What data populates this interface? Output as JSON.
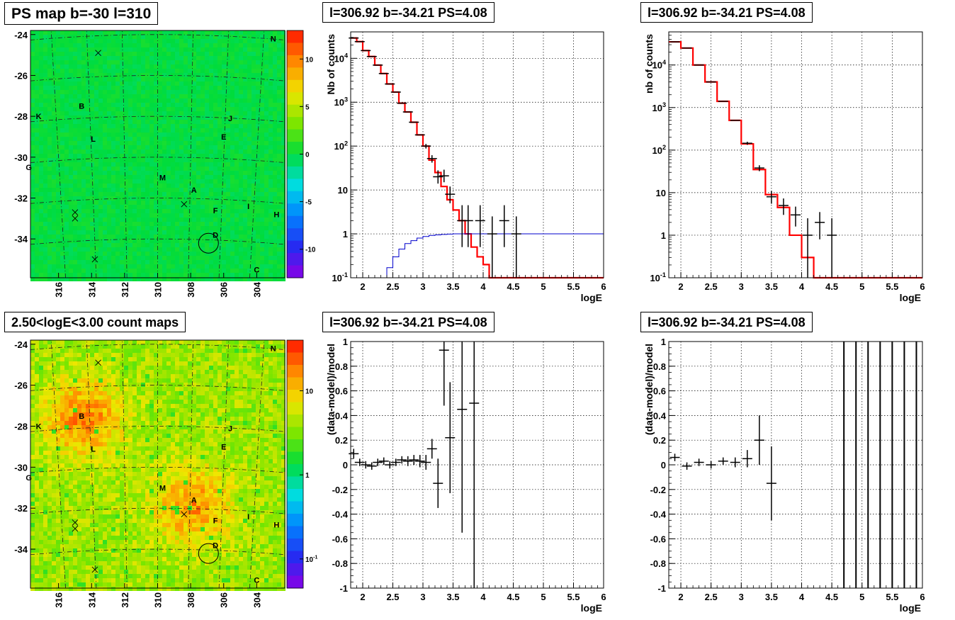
{
  "colors": {
    "data_marker": "#000000",
    "model_line": "#ff0000",
    "coverage_line": "#0000cc",
    "grid": "#000000",
    "ps_map_fill": "#22e022",
    "count_map_fill": "#f6b23a"
  },
  "chart_data": [
    {
      "id": "ps-map",
      "type": "heatmap",
      "title": "PS map b=-30 l=310",
      "x_ticks": [
        "316",
        "314",
        "312",
        "310",
        "308",
        "306",
        "304"
      ],
      "y_ticks": [
        "-24",
        "-26",
        "-28",
        "-30",
        "-32",
        "-34"
      ],
      "xlim": [
        317.7,
        302.3
      ],
      "ylim": [
        -35.9,
        -23.8
      ],
      "colorbar": {
        "ticks": [
          "10",
          "5",
          "0",
          "-5",
          "-10"
        ],
        "tick_values": [
          10,
          5,
          0,
          -5,
          -10
        ],
        "range": [
          -13,
          13
        ],
        "scale": "linear"
      },
      "sources": [
        {
          "label": "N",
          "l": 303.0,
          "b": -24.2
        },
        {
          "label": "B",
          "l": 314.6,
          "b": -27.5
        },
        {
          "label": "K",
          "l": 317.2,
          "b": -28.0
        },
        {
          "label": "J",
          "l": 305.6,
          "b": -28.1
        },
        {
          "label": "L",
          "l": 313.9,
          "b": -29.1
        },
        {
          "label": "E",
          "l": 306.0,
          "b": -29.0
        },
        {
          "label": "G",
          "l": 317.8,
          "b": -30.5
        },
        {
          "label": "M",
          "l": 309.7,
          "b": -31.0
        },
        {
          "label": "A",
          "l": 307.8,
          "b": -31.6
        },
        {
          "label": "F",
          "l": 306.5,
          "b": -32.6
        },
        {
          "label": "I",
          "l": 304.5,
          "b": -32.4
        },
        {
          "label": "H",
          "l": 302.8,
          "b": -32.8
        },
        {
          "label": "D",
          "l": 306.5,
          "b": -33.8
        },
        {
          "label": "C",
          "l": 304.0,
          "b": -35.5
        }
      ],
      "crosses": [
        {
          "l": 313.6,
          "b": -24.9
        },
        {
          "l": 315.0,
          "b": -32.7
        },
        {
          "l": 315.0,
          "b": -33.0
        },
        {
          "l": 308.4,
          "b": -32.3
        },
        {
          "l": 313.8,
          "b": -35.0
        }
      ],
      "circle": {
        "l": 306.92,
        "b": -34.21
      }
    },
    {
      "id": "count-map",
      "type": "heatmap",
      "title": "2.50<logE<3.00 count maps",
      "x_ticks": [
        "316",
        "314",
        "312",
        "310",
        "308",
        "306",
        "304"
      ],
      "y_ticks": [
        "-24",
        "-26",
        "-28",
        "-30",
        "-32",
        "-34"
      ],
      "xlim": [
        317.7,
        302.3
      ],
      "ylim": [
        -35.9,
        -23.8
      ],
      "colorbar": {
        "ticks": [
          "10",
          "1",
          "10^-1"
        ],
        "tick_values": [
          10,
          1,
          0.1
        ],
        "range": [
          0.045,
          40
        ],
        "scale": "log"
      },
      "sources": [
        {
          "label": "N",
          "l": 303.0,
          "b": -24.2
        },
        {
          "label": "B",
          "l": 314.6,
          "b": -27.5
        },
        {
          "label": "K",
          "l": 317.2,
          "b": -28.0
        },
        {
          "label": "J",
          "l": 305.6,
          "b": -28.1
        },
        {
          "label": "L",
          "l": 313.9,
          "b": -29.1
        },
        {
          "label": "E",
          "l": 306.0,
          "b": -29.0
        },
        {
          "label": "G",
          "l": 317.8,
          "b": -30.5
        },
        {
          "label": "M",
          "l": 309.7,
          "b": -31.0
        },
        {
          "label": "A",
          "l": 307.8,
          "b": -31.6
        },
        {
          "label": "F",
          "l": 306.5,
          "b": -32.6
        },
        {
          "label": "I",
          "l": 304.5,
          "b": -32.4
        },
        {
          "label": "H",
          "l": 302.8,
          "b": -32.8
        },
        {
          "label": "D",
          "l": 306.5,
          "b": -33.8
        },
        {
          "label": "C",
          "l": 304.0,
          "b": -35.5
        }
      ],
      "crosses": [
        {
          "l": 313.6,
          "b": -24.9
        },
        {
          "l": 315.0,
          "b": -32.7
        },
        {
          "l": 315.0,
          "b": -33.0
        },
        {
          "l": 308.4,
          "b": -32.3
        },
        {
          "l": 313.8,
          "b": -35.0
        }
      ],
      "circle": {
        "l": 306.92,
        "b": -34.21
      },
      "hotspots": [
        {
          "l": 314.6,
          "b": -27.5,
          "strength": 1.0
        },
        {
          "l": 308.0,
          "b": -31.8,
          "strength": 0.9
        }
      ]
    },
    {
      "id": "spectrum-1",
      "type": "line",
      "title": "l=306.92 b=-34.21 PS=4.08",
      "xlabel": "logE",
      "ylabel": "Nb of counts",
      "yscale": "log",
      "xlim": [
        1.8,
        6.0
      ],
      "ylim": [
        0.1,
        40000
      ],
      "x_ticks": [
        "2",
        "2.5",
        "3",
        "3.5",
        "4",
        "4.5",
        "5",
        "5.5",
        "6"
      ],
      "y_ticks": [
        "10^-1",
        "1",
        "10",
        "10^2",
        "10^3",
        "10^4"
      ],
      "series": [
        {
          "kind": "step",
          "edges": [
            1.8,
            1.9,
            2.0,
            2.1,
            2.2,
            2.3,
            2.4,
            2.5,
            2.6,
            2.7,
            2.8,
            2.9,
            3.0,
            3.1,
            3.2,
            3.3,
            3.4,
            3.5,
            3.6,
            3.7,
            3.8,
            3.9,
            4.0,
            4.1,
            4.2,
            4.3,
            4.4,
            4.5,
            4.6,
            4.7,
            4.8,
            4.9,
            5.0,
            5.1,
            5.2,
            5.3,
            5.4,
            5.5,
            5.6,
            5.7,
            5.8,
            5.9,
            6.0
          ],
          "values": [
            29000,
            24000,
            15000,
            11000,
            7000,
            4500,
            2600,
            1700,
            950,
            600,
            350,
            180,
            100,
            48,
            25,
            12,
            6,
            3.5,
            2,
            1,
            0.5,
            0.3,
            0.2,
            0.1,
            0.1,
            0.1,
            0.1,
            0.1,
            0.1,
            0.1,
            0.1,
            0.1,
            0.1,
            0.1,
            0.1,
            0.1,
            0.1,
            0.1,
            0.1,
            0.1,
            0.1,
            0.1
          ]
        },
        {
          "kind": "step",
          "edges": [
            2.3,
            2.4,
            2.5,
            2.6,
            2.7,
            2.8,
            2.9,
            3.0,
            3.1,
            3.2,
            3.3,
            3.4,
            3.5,
            3.6,
            6.0
          ],
          "values": [
            0.1,
            0.17,
            0.3,
            0.45,
            0.6,
            0.7,
            0.8,
            0.87,
            0.92,
            0.95,
            0.97,
            0.99,
            1.0,
            1.0
          ]
        },
        {
          "kind": "points",
          "x": [
            1.85,
            1.95,
            2.05,
            2.15,
            2.25,
            2.35,
            2.45,
            2.55,
            2.65,
            2.75,
            2.85,
            2.95,
            3.05,
            3.15,
            3.25,
            3.35,
            3.45,
            3.65,
            3.75,
            3.95,
            4.15,
            4.35,
            4.55
          ],
          "y": [
            29000,
            24000,
            15000,
            11000,
            7000,
            4500,
            2600,
            1700,
            950,
            600,
            350,
            180,
            100,
            52,
            20,
            21,
            8,
            2,
            2,
            2,
            1,
            2,
            1
          ],
          "err_up": [
            0,
            0,
            0,
            0,
            0,
            0,
            0,
            0,
            0,
            0,
            0,
            0,
            12,
            10,
            8,
            8,
            4,
            2.5,
            2.5,
            2.5,
            1.5,
            2.5,
            1.5
          ],
          "err_down": [
            0,
            0,
            0,
            0,
            0,
            0,
            0,
            0,
            0,
            0,
            0,
            0,
            12,
            10,
            6,
            6,
            3,
            1.5,
            1.5,
            1.5,
            0.9,
            1.5,
            0.9
          ]
        }
      ]
    },
    {
      "id": "spectrum-2",
      "type": "line",
      "title": "l=306.92 b=-34.21 PS=4.08",
      "xlabel": "logE",
      "ylabel": "nb of counts",
      "yscale": "log",
      "xlim": [
        1.8,
        6.0
      ],
      "ylim": [
        0.1,
        60000
      ],
      "x_ticks": [
        "2",
        "2.5",
        "3",
        "3.5",
        "4",
        "4.5",
        "5",
        "5.5",
        "6"
      ],
      "y_ticks": [
        "10^-1",
        "1",
        "10",
        "10^2",
        "10^3",
        "10^4"
      ],
      "series": [
        {
          "kind": "step",
          "edges": [
            1.8,
            2.0,
            2.2,
            2.4,
            2.6,
            2.8,
            3.0,
            3.2,
            3.4,
            3.6,
            3.8,
            4.0,
            4.2,
            4.4,
            6.0
          ],
          "values": [
            35000,
            25000,
            10000,
            4000,
            1400,
            500,
            140,
            35,
            9,
            4.5,
            1,
            0.3,
            0.1,
            0.1
          ]
        },
        {
          "kind": "points",
          "x": [
            1.9,
            2.1,
            2.3,
            2.5,
            2.7,
            2.9,
            3.1,
            3.3,
            3.5,
            3.7,
            3.9,
            4.1,
            4.3,
            4.5
          ],
          "y": [
            35000,
            25000,
            10000,
            4000,
            1400,
            500,
            145,
            38,
            8,
            5,
            3,
            1,
            2,
            1
          ],
          "err_up": [
            0,
            0,
            0,
            0,
            0,
            0,
            12,
            6,
            3,
            2.3,
            1.7,
            1.5,
            1.5,
            1.5
          ],
          "err_down": [
            0,
            0,
            0,
            0,
            0,
            0,
            12,
            6,
            2.5,
            2,
            1.4,
            0.9,
            1.2,
            0.9
          ]
        }
      ]
    },
    {
      "id": "residual-1",
      "type": "scatter",
      "title": "l=306.92 b=-34.21 PS=4.08",
      "xlabel": "logE",
      "ylabel": "(data-model)/model",
      "xlim": [
        1.8,
        6.0
      ],
      "ylim": [
        -1,
        1
      ],
      "x_ticks": [
        "2",
        "2.5",
        "3",
        "3.5",
        "4",
        "4.5",
        "5",
        "5.5",
        "6"
      ],
      "y_ticks": [
        "-1",
        "-0.8",
        "-0.6",
        "-0.4",
        "-0.2",
        "0",
        "0.2",
        "0.4",
        "0.6",
        "0.8",
        "1"
      ],
      "points": {
        "x": [
          1.85,
          1.95,
          2.05,
          2.15,
          2.25,
          2.35,
          2.45,
          2.55,
          2.65,
          2.75,
          2.85,
          2.95,
          3.05,
          3.15,
          3.25,
          3.35,
          3.45,
          3.65,
          3.85
        ],
        "y": [
          0.09,
          0.02,
          0.0,
          -0.01,
          0.02,
          0.03,
          0.0,
          0.02,
          0.04,
          0.03,
          0.04,
          0.03,
          0.02,
          0.13,
          -0.15,
          0.93,
          0.22,
          0.45,
          0.5
        ],
        "err": [
          0.04,
          0.03,
          0.03,
          0.03,
          0.03,
          0.03,
          0.03,
          0.03,
          0.03,
          0.04,
          0.04,
          0.05,
          0.06,
          0.08,
          0.2,
          0.45,
          0.45,
          1.0,
          1.5
        ]
      }
    },
    {
      "id": "residual-2",
      "type": "scatter",
      "title": "l=306.92 b=-34.21 PS=4.08",
      "xlabel": "logE",
      "ylabel": "(data-model)/model",
      "xlim": [
        1.8,
        6.0
      ],
      "ylim": [
        -1,
        1
      ],
      "x_ticks": [
        "2",
        "2.5",
        "3",
        "3.5",
        "4",
        "4.5",
        "5",
        "5.5",
        "6"
      ],
      "y_ticks": [
        "-1",
        "-0.8",
        "-0.6",
        "-0.4",
        "-0.2",
        "0",
        "0.2",
        "0.4",
        "0.6",
        "0.8",
        "1"
      ],
      "points": {
        "x": [
          1.9,
          2.1,
          2.3,
          2.5,
          2.7,
          2.9,
          3.1,
          3.3,
          3.5
        ],
        "y": [
          0.06,
          -0.01,
          0.02,
          0.0,
          0.03,
          0.02,
          0.05,
          0.2,
          -0.15
        ],
        "err": [
          0.03,
          0.03,
          0.03,
          0.03,
          0.03,
          0.04,
          0.07,
          0.2,
          0.3
        ]
      },
      "vertical_lines_x": [
        4.7,
        4.9,
        5.1,
        5.3,
        5.5,
        5.7,
        5.9
      ]
    }
  ]
}
